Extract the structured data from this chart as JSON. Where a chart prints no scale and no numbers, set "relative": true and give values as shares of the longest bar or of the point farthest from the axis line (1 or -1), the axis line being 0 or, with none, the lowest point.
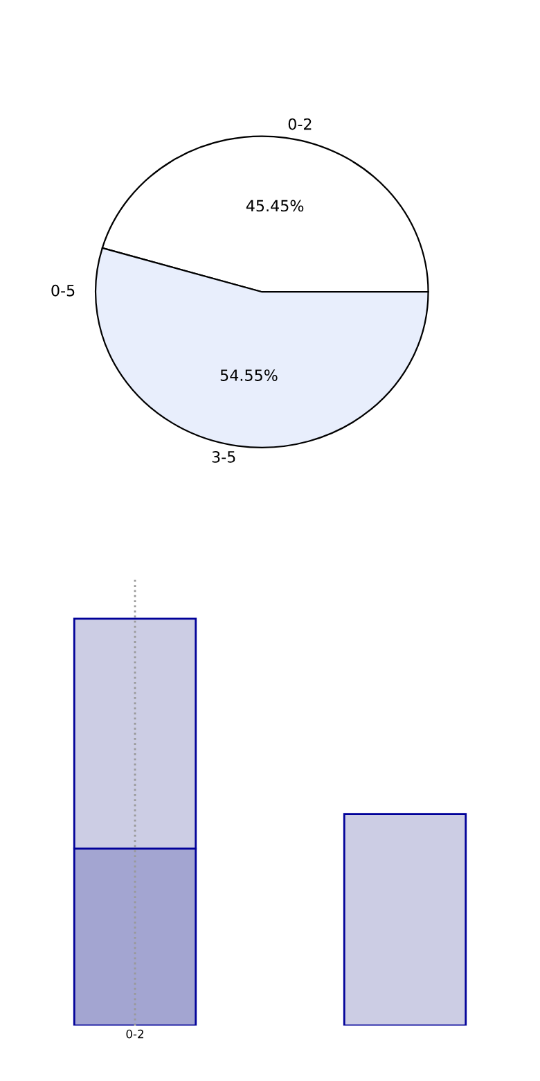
{
  "chart_data": [
    {
      "type": "pie",
      "categories": [
        "0-2",
        "3-5"
      ],
      "values": [
        45.45,
        54.55
      ],
      "colors": [
        "#ffffff",
        "#e8eefc"
      ],
      "value_labels": [
        "45.45%",
        "54.55%"
      ],
      "annotations": [
        "0-5"
      ]
    },
    {
      "type": "bar",
      "stacked": true,
      "relative": true,
      "categories": [
        "0-2",
        null
      ],
      "ref_lines": [
        {
          "axis": "x",
          "value": "0-2",
          "color": "#999999",
          "line_style": "dotted"
        }
      ],
      "series": [
        {
          "color": "#a3a5d1",
          "values": [
            0.435,
            null
          ]
        },
        {
          "color": "#cccde4",
          "values": [
            0.565,
            0.52
          ]
        }
      ]
    }
  ]
}
